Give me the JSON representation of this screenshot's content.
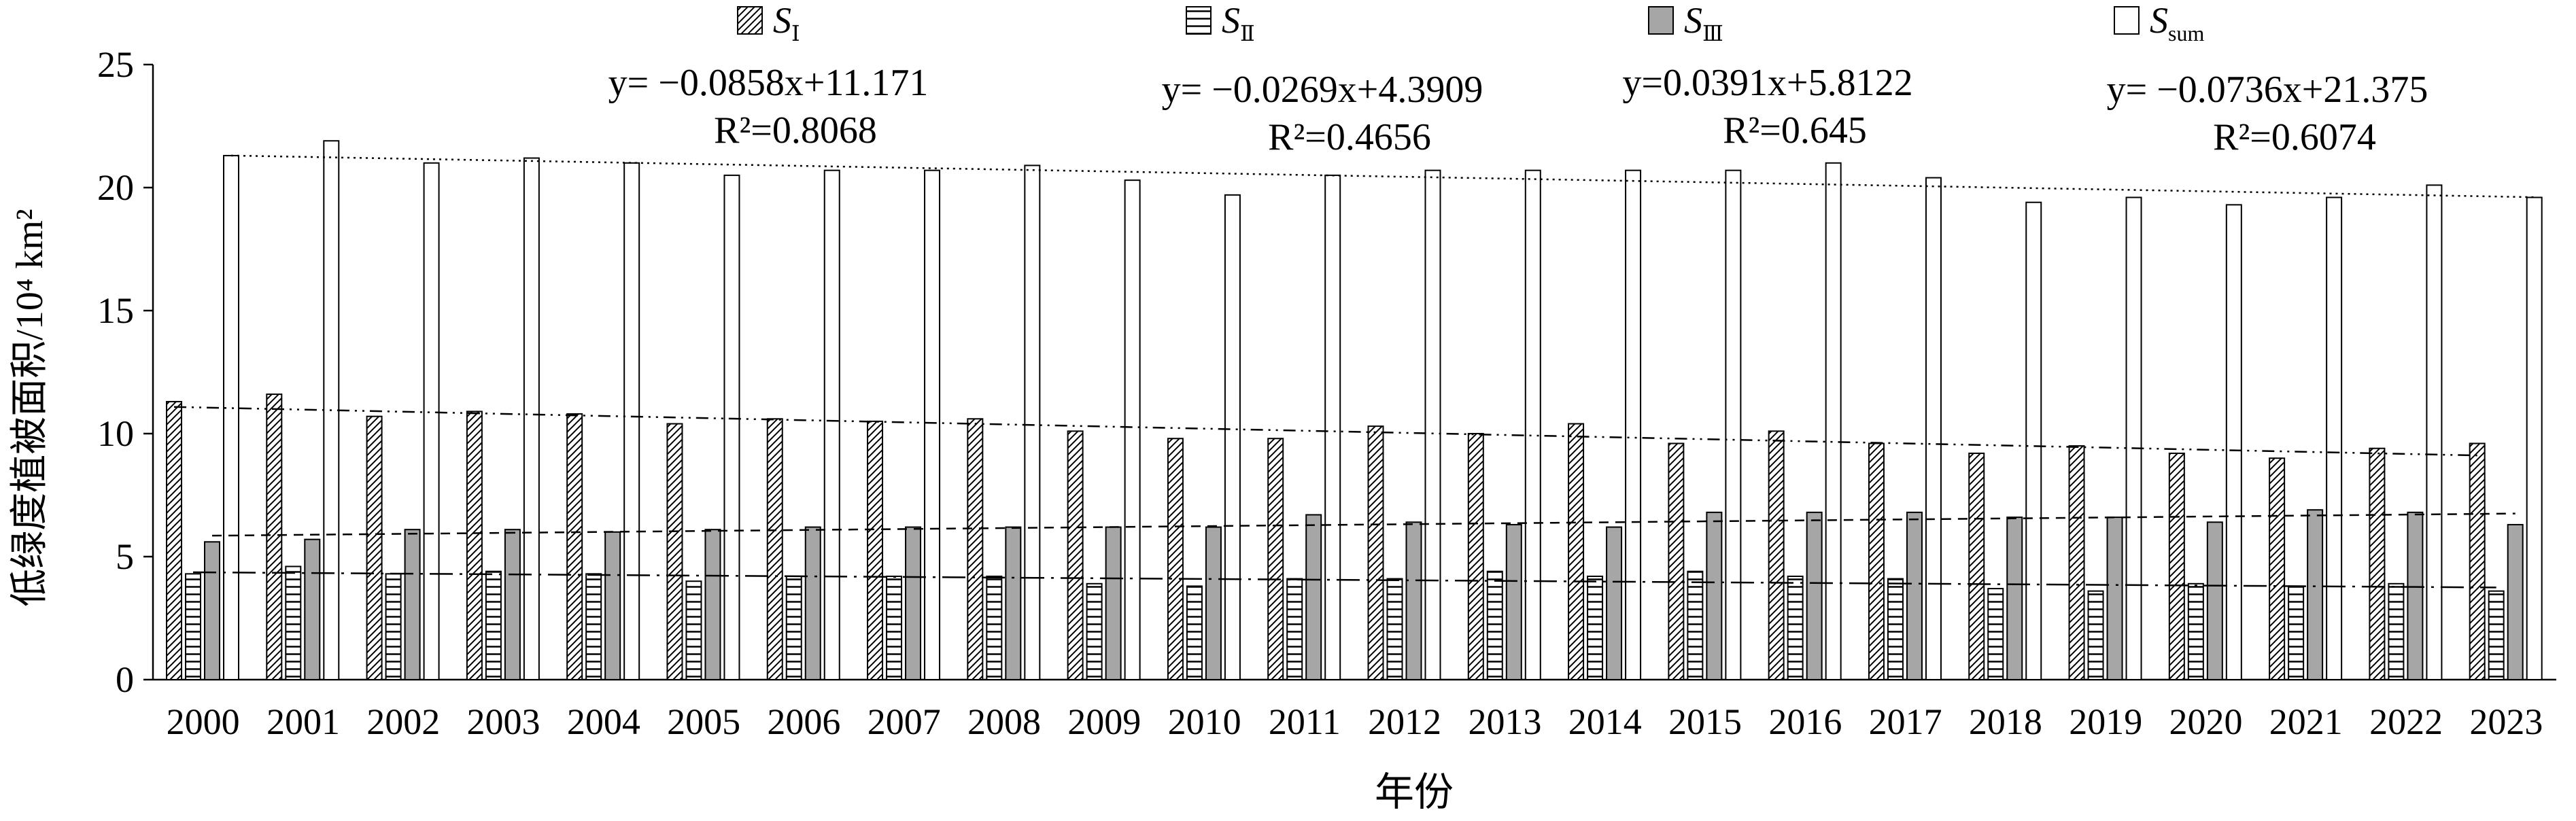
{
  "chart_data": {
    "type": "bar",
    "xlabel": "年份",
    "ylabel": "低绿度植被面积/10⁴ km²",
    "ylim": [
      0,
      25
    ],
    "yticks": [
      0,
      5,
      10,
      15,
      20,
      25
    ],
    "legend_position": "top",
    "categories": [
      "2000",
      "2001",
      "2002",
      "2003",
      "2004",
      "2005",
      "2006",
      "2007",
      "2008",
      "2009",
      "2010",
      "2011",
      "2012",
      "2013",
      "2014",
      "2015",
      "2016",
      "2017",
      "2018",
      "2019",
      "2020",
      "2021",
      "2022",
      "2023"
    ],
    "series": [
      {
        "key": "S1",
        "name_main": "S",
        "name_sub": "Ⅰ",
        "pattern": "hatch",
        "values": [
          11.3,
          11.6,
          10.7,
          10.9,
          10.8,
          10.4,
          10.6,
          10.5,
          10.6,
          10.1,
          9.8,
          9.8,
          10.3,
          10.0,
          10.4,
          9.6,
          10.1,
          9.6,
          9.2,
          9.5,
          9.2,
          9.0,
          9.4,
          9.6
        ]
      },
      {
        "key": "S2",
        "name_main": "S",
        "name_sub": "Ⅱ",
        "pattern": "hlines",
        "values": [
          4.3,
          4.6,
          4.3,
          4.4,
          4.3,
          4.0,
          4.2,
          4.2,
          4.2,
          3.9,
          3.8,
          4.1,
          4.1,
          4.4,
          4.2,
          4.4,
          4.2,
          4.1,
          3.7,
          3.6,
          3.9,
          3.8,
          3.9,
          3.6
        ]
      },
      {
        "key": "S3",
        "name_main": "S",
        "name_sub": "Ⅲ",
        "pattern": "gray",
        "values": [
          5.6,
          5.7,
          6.1,
          6.1,
          6.0,
          6.1,
          6.2,
          6.2,
          6.2,
          6.2,
          6.2,
          6.7,
          6.4,
          6.3,
          6.2,
          6.8,
          6.8,
          6.8,
          6.6,
          6.6,
          6.4,
          6.9,
          6.8,
          6.3
        ]
      },
      {
        "key": "Ssum",
        "name_main": "S",
        "name_sub": "sum",
        "pattern": "white",
        "values": [
          21.3,
          21.9,
          21.0,
          21.2,
          21.0,
          20.5,
          20.7,
          20.7,
          20.9,
          20.3,
          19.7,
          20.5,
          20.7,
          20.7,
          20.7,
          20.7,
          21.0,
          20.4,
          19.4,
          19.6,
          19.3,
          19.6,
          20.1,
          19.6
        ]
      }
    ],
    "trendlines": [
      {
        "series": "Ssum",
        "style": "dotted",
        "slope": -0.0736,
        "intercept": 21.375
      },
      {
        "series": "S1",
        "style": "dashdotdot",
        "slope": -0.0858,
        "intercept": 11.171
      },
      {
        "series": "S3",
        "style": "dashed",
        "slope": 0.0391,
        "intercept": 5.8122
      },
      {
        "series": "S2",
        "style": "longdashdot",
        "slope": -0.0269,
        "intercept": 4.3909
      }
    ],
    "annotations": [
      {
        "eq": "y= −0.0858x+11.171",
        "r2": "R²=0.8068"
      },
      {
        "eq": "y= −0.0269x+4.3909",
        "r2": "R²=0.4656"
      },
      {
        "eq": "y=0.0391x+5.8122",
        "r2": "R²=0.645"
      },
      {
        "eq": "y= −0.0736x+21.375",
        "r2": "R²=0.6074"
      }
    ]
  }
}
